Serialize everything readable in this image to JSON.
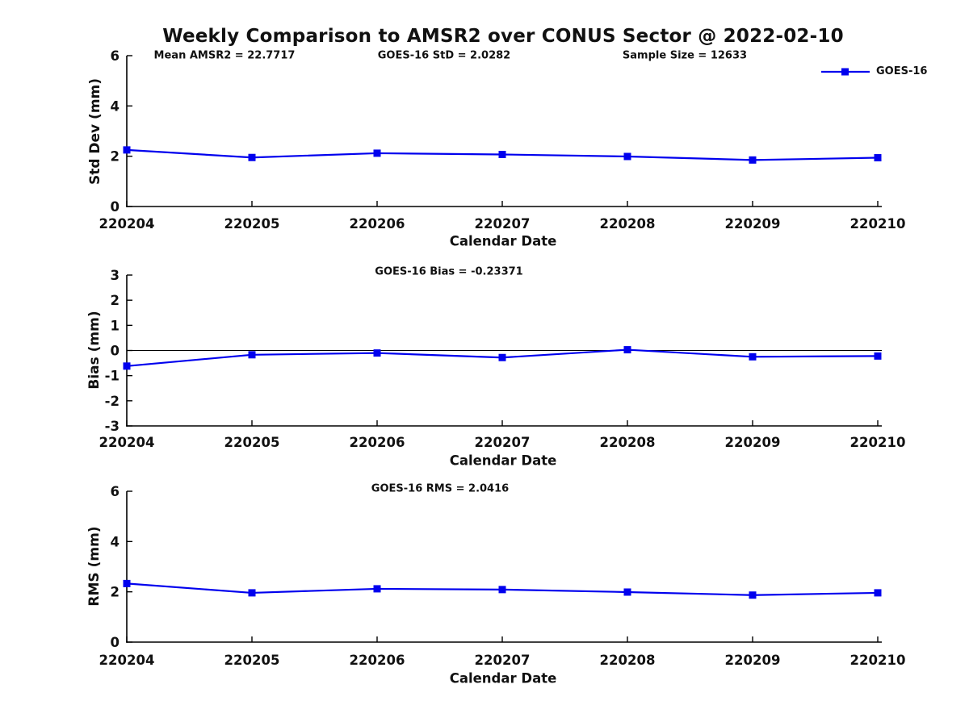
{
  "figure": {
    "title": "Weekly Comparison to AMSR2 over CONUS Sector @ 2022-02-10",
    "background_color": "#ffffff",
    "axis_color": "#000000",
    "text_color": "#111111",
    "line_color": "#0000ee"
  },
  "legend": {
    "label": "GOES-16",
    "marker": "square",
    "color": "#0000ee",
    "position": "top-right"
  },
  "annotations": {
    "mean_amsr2": "Mean AMSR2 = 22.7717",
    "goes16_std": "GOES-16 StD = 2.0282",
    "sample_size": "Sample Size = 12633",
    "goes16_bias": "GOES-16 Bias  = -0.23371",
    "goes16_rms": "GOES-16 RMS = 2.0416"
  },
  "chart_data": [
    {
      "type": "line",
      "panel": "std-dev",
      "xlabel": "Calendar Date",
      "ylabel": "Std Dev (mm)",
      "categories": [
        "220204",
        "220205",
        "220206",
        "220207",
        "220208",
        "220209",
        "220210"
      ],
      "series": [
        {
          "name": "GOES-16",
          "values": [
            2.25,
            1.95,
            2.12,
            2.07,
            1.99,
            1.85,
            1.94
          ]
        }
      ],
      "ylim": [
        0,
        6
      ],
      "yticks": [
        0,
        2,
        4,
        6
      ],
      "grid": false,
      "zero_line": false,
      "marker": "square"
    },
    {
      "type": "line",
      "panel": "bias",
      "xlabel": "Calendar Date",
      "ylabel": "Bias (mm)",
      "categories": [
        "220204",
        "220205",
        "220206",
        "220207",
        "220208",
        "220209",
        "220210"
      ],
      "series": [
        {
          "name": "GOES-16",
          "values": [
            -0.62,
            -0.17,
            -0.1,
            -0.28,
            0.03,
            -0.25,
            -0.22
          ]
        }
      ],
      "ylim": [
        -3,
        3
      ],
      "yticks": [
        -3,
        -2,
        -1,
        0,
        1,
        2,
        3
      ],
      "grid": false,
      "zero_line": true,
      "marker": "square"
    },
    {
      "type": "line",
      "panel": "rms",
      "xlabel": "Calendar Date",
      "ylabel": "RMS (mm)",
      "categories": [
        "220204",
        "220205",
        "220206",
        "220207",
        "220208",
        "220209",
        "220210"
      ],
      "series": [
        {
          "name": "GOES-16",
          "values": [
            2.33,
            1.96,
            2.12,
            2.09,
            1.99,
            1.87,
            1.96
          ]
        }
      ],
      "ylim": [
        0,
        6
      ],
      "yticks": [
        0,
        2,
        4,
        6
      ],
      "grid": false,
      "zero_line": false,
      "marker": "square"
    }
  ]
}
